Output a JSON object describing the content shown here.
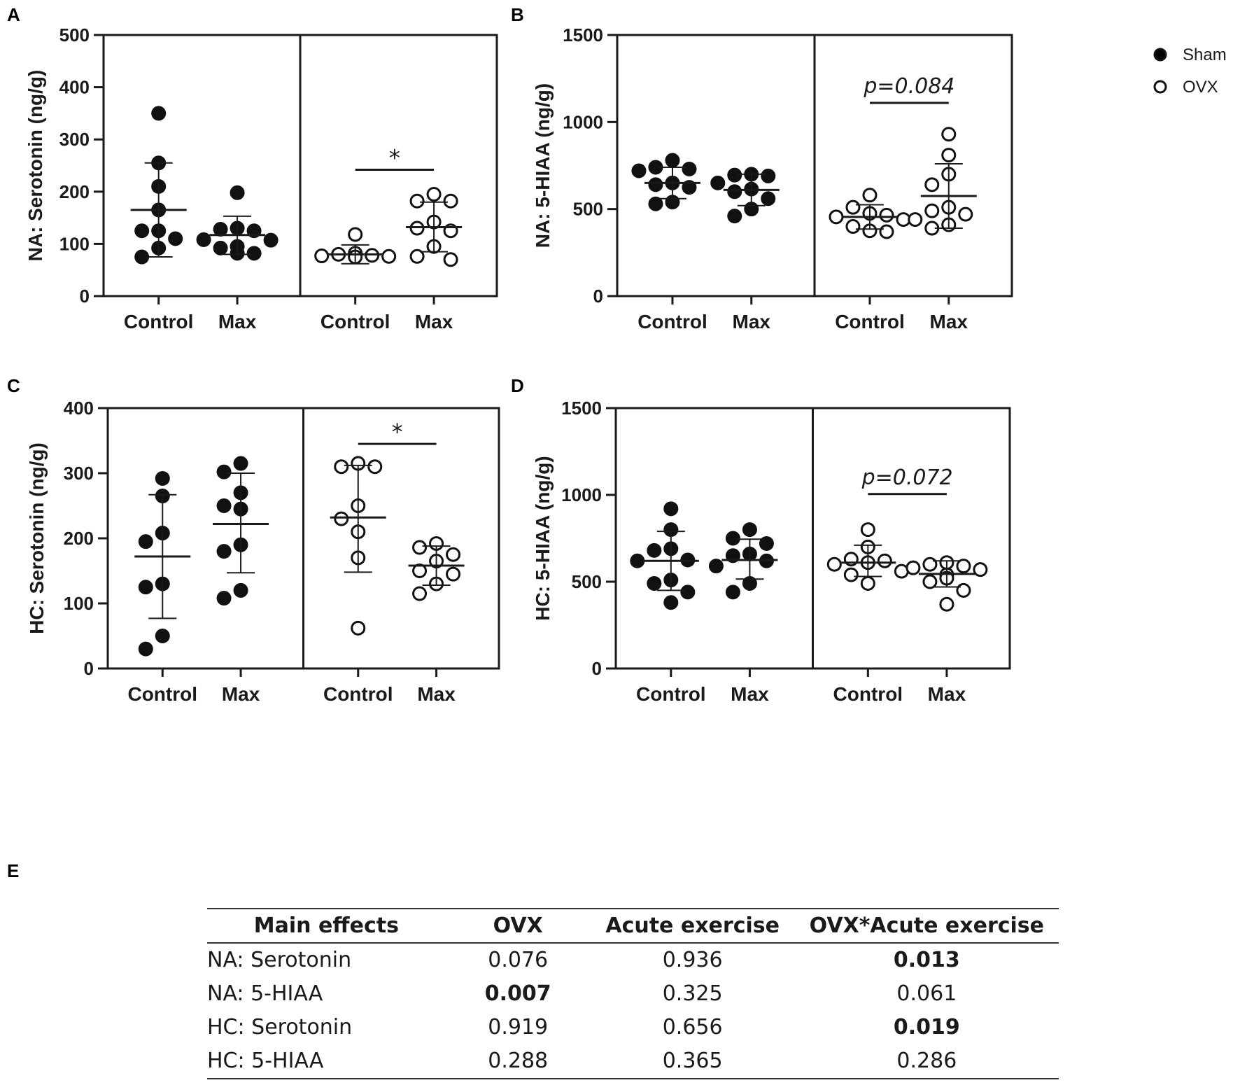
{
  "legend": {
    "entries": [
      {
        "label": "Sham",
        "fill": "#000000"
      },
      {
        "label": "OVX",
        "fill": "#ffffff"
      }
    ]
  },
  "chart_data": [
    {
      "panel": "A",
      "type": "scatter",
      "ylabel": "NA: Serotonin (ng/g)",
      "ylim": [
        0,
        500
      ],
      "yticks": [
        0,
        100,
        200,
        300,
        400,
        500
      ],
      "subpanels": [
        {
          "group": "Sham",
          "categories": [
            "Control",
            "Max"
          ],
          "series": [
            {
              "name": "Control",
              "mean": 165,
              "sd_low": 75,
              "sd_high": 255,
              "values": [
                350,
                255,
                210,
                165,
                125,
                125,
                110,
                92,
                75
              ]
            },
            {
              "name": "Max",
              "mean": 117,
              "sd_low": 80,
              "sd_high": 153,
              "values": [
                198,
                130,
                128,
                125,
                108,
                107,
                95,
                92,
                82,
                82
              ]
            }
          ]
        },
        {
          "group": "OVX",
          "categories": [
            "Control",
            "Max"
          ],
          "series": [
            {
              "name": "Control",
              "mean": 80,
              "sd_low": 62,
              "sd_high": 98,
              "values": [
                118,
                82,
                80,
                78,
                77,
                76,
                75
              ]
            },
            {
              "name": "Max",
              "mean": 132,
              "sd_low": 85,
              "sd_high": 180,
              "values": [
                195,
                182,
                182,
                142,
                130,
                125,
                95,
                76,
                70
              ]
            }
          ],
          "annotation": {
            "text": "*",
            "y": 242
          }
        }
      ]
    },
    {
      "panel": "B",
      "type": "scatter",
      "ylabel": "NA: 5-HIAA (ng/g)",
      "ylim": [
        0,
        1500
      ],
      "yticks": [
        0,
        500,
        1000,
        1500
      ],
      "subpanels": [
        {
          "group": "Sham",
          "categories": [
            "Control",
            "Max"
          ],
          "series": [
            {
              "name": "Control",
              "mean": 650,
              "sd_low": 560,
              "sd_high": 740,
              "values": [
                780,
                740,
                730,
                720,
                650,
                640,
                625,
                540,
                530
              ]
            },
            {
              "name": "Max",
              "mean": 610,
              "sd_low": 520,
              "sd_high": 700,
              "values": [
                700,
                695,
                690,
                650,
                615,
                600,
                560,
                500,
                460
              ]
            }
          ]
        },
        {
          "group": "OVX",
          "categories": [
            "Control",
            "Max"
          ],
          "series": [
            {
              "name": "Control",
              "mean": 455,
              "sd_low": 385,
              "sd_high": 525,
              "values": [
                580,
                510,
                475,
                465,
                455,
                440,
                400,
                375,
                370
              ]
            },
            {
              "name": "Max",
              "mean": 575,
              "sd_low": 390,
              "sd_high": 760,
              "values": [
                930,
                810,
                700,
                640,
                510,
                490,
                470,
                440,
                410,
                390
              ]
            }
          ],
          "annotation": {
            "text": "p=0.084",
            "y": 1110
          }
        }
      ]
    },
    {
      "panel": "C",
      "type": "scatter",
      "ylabel": "HC: Serotonin (ng/g)",
      "ylim": [
        0,
        400
      ],
      "yticks": [
        0,
        100,
        200,
        300,
        400
      ],
      "subpanels": [
        {
          "group": "Sham",
          "categories": [
            "Control",
            "Max"
          ],
          "series": [
            {
              "name": "Control",
              "mean": 172,
              "sd_low": 77,
              "sd_high": 267,
              "values": [
                292,
                265,
                208,
                195,
                130,
                125,
                50,
                30
              ]
            },
            {
              "name": "Max",
              "mean": 222,
              "sd_low": 147,
              "sd_high": 300,
              "values": [
                315,
                302,
                270,
                250,
                245,
                190,
                180,
                120,
                108
              ]
            }
          ]
        },
        {
          "group": "OVX",
          "categories": [
            "Control",
            "Max"
          ],
          "series": [
            {
              "name": "Control",
              "mean": 232,
              "sd_low": 148,
              "sd_high": 312,
              "values": [
                315,
                310,
                310,
                250,
                230,
                210,
                170,
                62
              ]
            },
            {
              "name": "Max",
              "mean": 158,
              "sd_low": 128,
              "sd_high": 188,
              "values": [
                192,
                186,
                175,
                165,
                150,
                145,
                130,
                115
              ]
            }
          ],
          "annotation": {
            "text": "*",
            "y": 345
          }
        }
      ]
    },
    {
      "panel": "D",
      "type": "scatter",
      "ylabel": "HC: 5-HIAA (ng/g)",
      "ylim": [
        0,
        1500
      ],
      "yticks": [
        0,
        500,
        1000,
        1500
      ],
      "subpanels": [
        {
          "group": "Sham",
          "categories": [
            "Control",
            "Max"
          ],
          "series": [
            {
              "name": "Control",
              "mean": 620,
              "sd_low": 450,
              "sd_high": 790,
              "values": [
                920,
                800,
                690,
                680,
                625,
                620,
                510,
                490,
                440,
                380
              ]
            },
            {
              "name": "Max",
              "mean": 625,
              "sd_low": 515,
              "sd_high": 745,
              "values": [
                800,
                750,
                720,
                660,
                650,
                620,
                590,
                490,
                440
              ]
            }
          ]
        },
        {
          "group": "OVX",
          "categories": [
            "Control",
            "Max"
          ],
          "series": [
            {
              "name": "Control",
              "mean": 610,
              "sd_low": 530,
              "sd_high": 710,
              "values": [
                800,
                700,
                630,
                620,
                610,
                600,
                560,
                540,
                490
              ]
            },
            {
              "name": "Max",
              "mean": 545,
              "sd_low": 470,
              "sd_high": 620,
              "values": [
                610,
                600,
                590,
                580,
                570,
                540,
                520,
                500,
                450,
                370
              ]
            }
          ],
          "annotation": {
            "text": "p=0.072",
            "y": 1005
          }
        }
      ]
    }
  ],
  "table": {
    "panel": "E",
    "headers": [
      "Main effects",
      "OVX",
      "Acute exercise",
      "OVX*Acute exercise"
    ],
    "rows": [
      {
        "cells": [
          "NA: Serotonin",
          "0.076",
          "0.936",
          "0.013"
        ],
        "bold": [
          false,
          false,
          false,
          true
        ]
      },
      {
        "cells": [
          "NA: 5-HIAA",
          "0.007",
          "0.325",
          "0.061"
        ],
        "bold": [
          false,
          true,
          false,
          false
        ]
      },
      {
        "cells": [
          "HC: Serotonin",
          "0.919",
          "0.656",
          "0.019"
        ],
        "bold": [
          false,
          false,
          false,
          true
        ]
      },
      {
        "cells": [
          "HC: 5-HIAA",
          "0.288",
          "0.365",
          "0.286"
        ],
        "bold": [
          false,
          false,
          false,
          false
        ]
      }
    ]
  }
}
